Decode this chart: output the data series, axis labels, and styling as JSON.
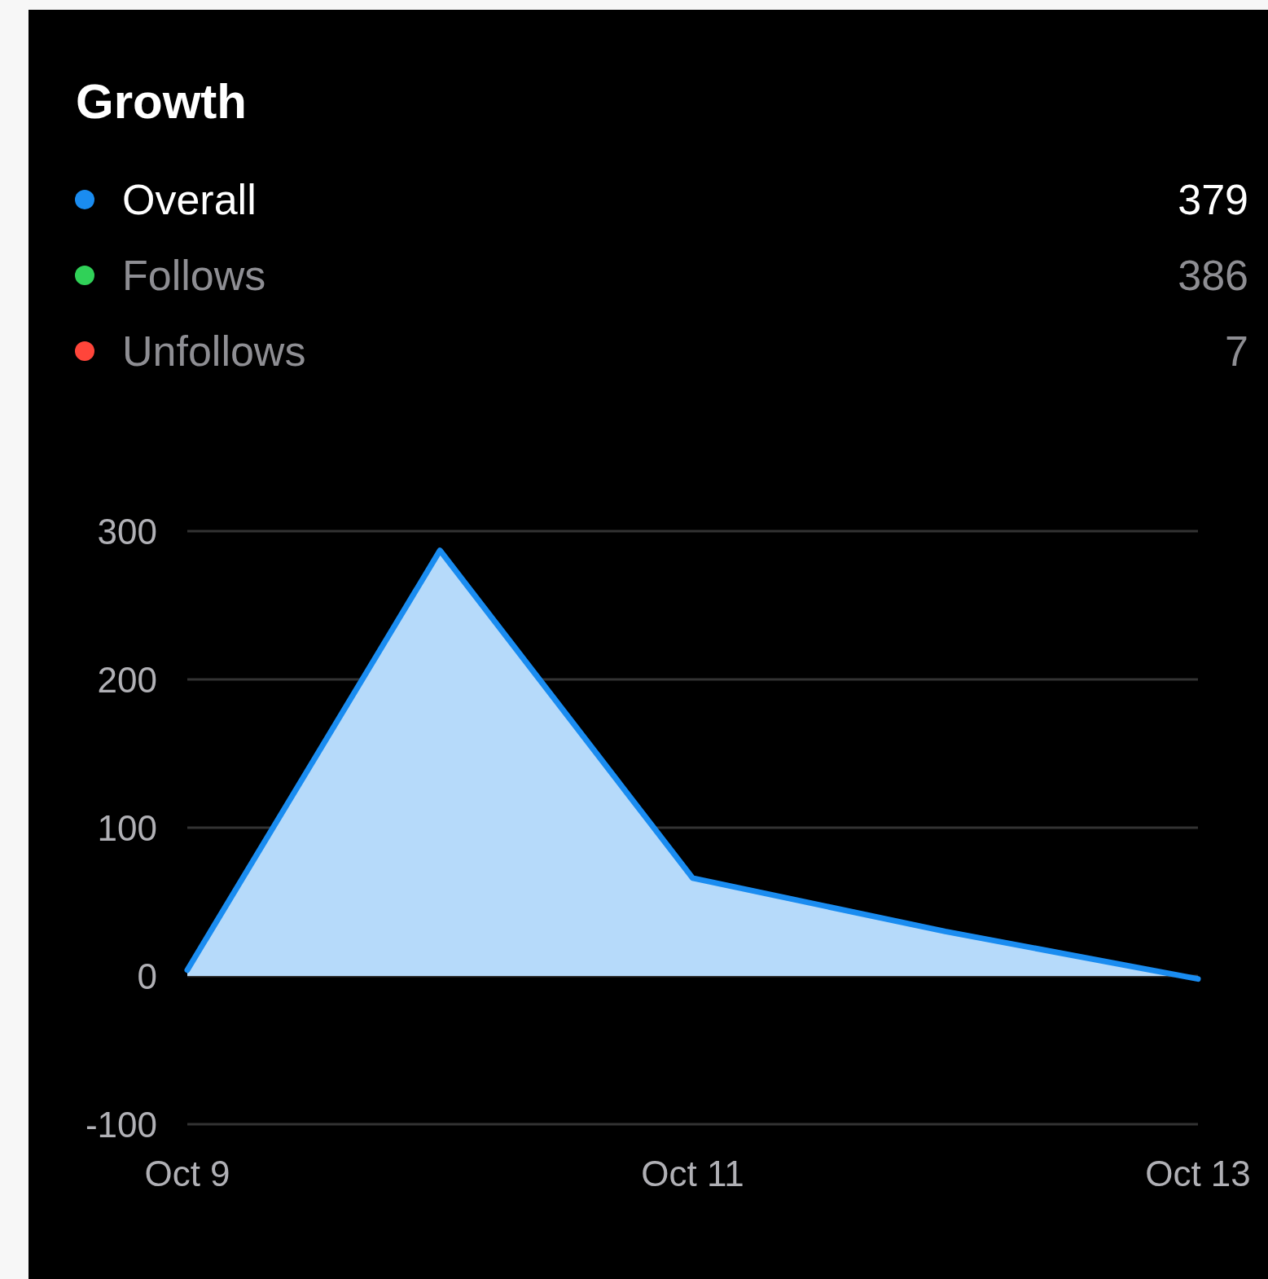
{
  "chart_data": {
    "type": "area",
    "title": "Growth",
    "categories": [
      "Oct 9",
      null,
      "Oct 11",
      null,
      "Oct 13"
    ],
    "series": [
      {
        "name": "Overall",
        "color": "#1a8cf0",
        "values": [
          4,
          287,
          66,
          30,
          -2
        ]
      },
      {
        "name": "Follows",
        "color": "#30d158",
        "values": [
          null,
          null,
          null,
          null,
          null
        ]
      },
      {
        "name": "Unfollows",
        "color": "#ff453a",
        "values": [
          null,
          null,
          null,
          null,
          null
        ]
      }
    ],
    "annotations": [
      "379",
      "386",
      "7"
    ],
    "ylim": [
      -100,
      300
    ],
    "yticks": [
      -100,
      0,
      100,
      200,
      300
    ],
    "grid": "y",
    "legend": "top left"
  }
}
